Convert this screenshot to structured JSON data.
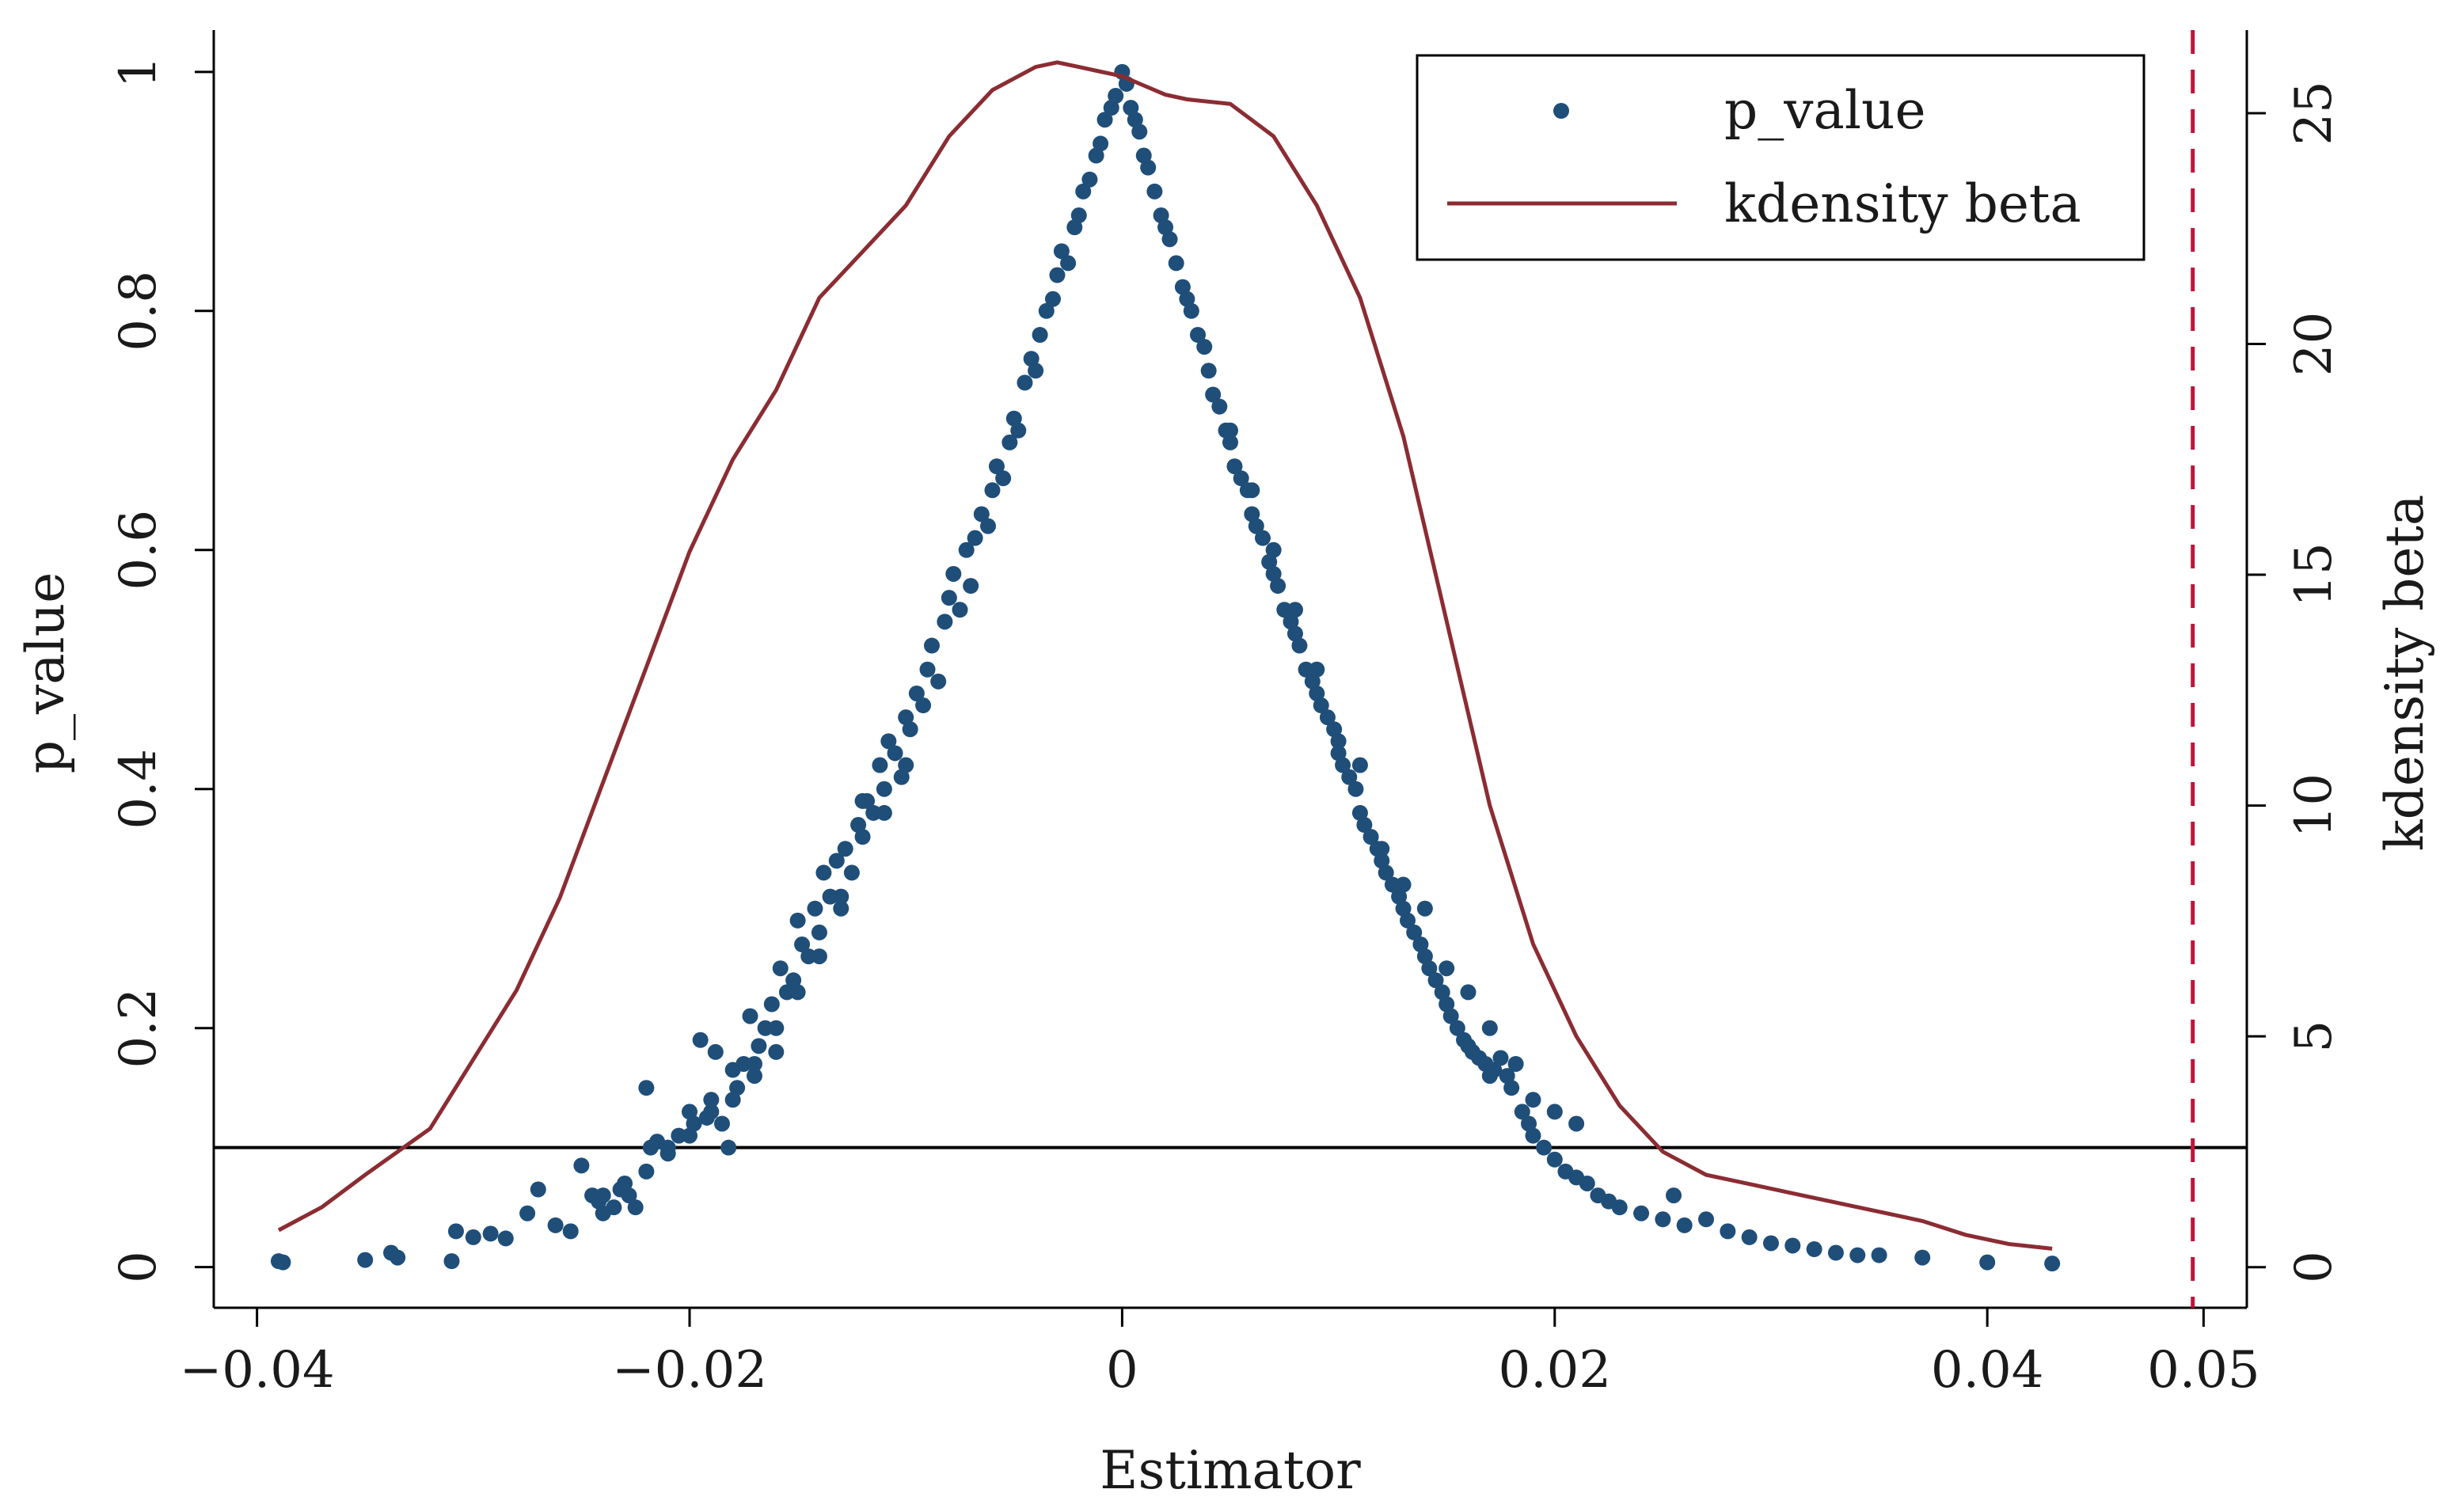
{
  "chart_data": {
    "type": "scatter",
    "xlabel": "Estimator",
    "ylabel": "p_value",
    "y2label": "kdensity beta",
    "xlim": [
      -0.042,
      0.052
    ],
    "ylim": [
      -0.034,
      1.035
    ],
    "y2lim": [
      -0.88,
      26.8
    ],
    "x_ticks": [
      -0.04,
      -0.02,
      0,
      0.02,
      0.04,
      0.05
    ],
    "x_tick_labels": [
      "−0.04",
      "−0.02",
      "0",
      "0.02",
      "0.04",
      "0.05"
    ],
    "y_ticks": [
      0,
      0.2,
      0.4,
      0.6,
      0.8,
      1
    ],
    "y_tick_labels": [
      "0",
      "0.2",
      "0.4",
      "0.6",
      "0.8",
      "1"
    ],
    "y2_ticks": [
      0,
      5,
      10,
      15,
      20,
      25
    ],
    "y2_tick_labels": [
      "0",
      "5",
      "10",
      "15",
      "20",
      "25"
    ],
    "grid": false,
    "legend_position": "top-right",
    "legend": [
      {
        "label": "p_value",
        "marker": "dot"
      },
      {
        "label": "kdensity beta",
        "marker": "line"
      }
    ],
    "colors": {
      "scatter": "#1f4e79",
      "kdensity": "#8b2c33",
      "vline": "#c0143c",
      "hline": "#000000"
    },
    "hline": {
      "y": 0.1
    },
    "vline": {
      "x": 0.0495,
      "style": "dashed"
    },
    "series": [
      {
        "name": "p_value",
        "type": "scatter",
        "points": [
          [
            -0.039,
            0.005
          ],
          [
            -0.0388,
            0.004
          ],
          [
            -0.035,
            0.006
          ],
          [
            -0.0338,
            0.012
          ],
          [
            -0.0335,
            0.008
          ],
          [
            -0.031,
            0.005
          ],
          [
            -0.0308,
            0.03
          ],
          [
            -0.03,
            0.025
          ],
          [
            -0.0292,
            0.028
          ],
          [
            -0.0285,
            0.024
          ],
          [
            -0.0275,
            0.045
          ],
          [
            -0.027,
            0.065
          ],
          [
            -0.0262,
            0.035
          ],
          [
            -0.0255,
            0.03
          ],
          [
            -0.025,
            0.085
          ],
          [
            -0.0245,
            0.06
          ],
          [
            -0.0242,
            0.055
          ],
          [
            -0.024,
            0.045
          ],
          [
            -0.0235,
            0.05
          ],
          [
            -0.0232,
            0.065
          ],
          [
            -0.0228,
            0.06
          ],
          [
            -0.0225,
            0.05
          ],
          [
            -0.022,
            0.15
          ],
          [
            -0.0218,
            0.1
          ],
          [
            -0.0215,
            0.105
          ],
          [
            -0.021,
            0.095
          ],
          [
            -0.0205,
            0.11
          ],
          [
            -0.02,
            0.13
          ],
          [
            -0.0198,
            0.12
          ],
          [
            -0.0195,
            0.19
          ],
          [
            -0.0192,
            0.125
          ],
          [
            -0.019,
            0.14
          ],
          [
            -0.0188,
            0.18
          ],
          [
            -0.0185,
            0.12
          ],
          [
            -0.0182,
            0.1
          ],
          [
            -0.018,
            0.165
          ],
          [
            -0.0178,
            0.15
          ],
          [
            -0.0175,
            0.17
          ],
          [
            -0.0172,
            0.21
          ],
          [
            -0.017,
            0.16
          ],
          [
            -0.0168,
            0.185
          ],
          [
            -0.0165,
            0.2
          ],
          [
            -0.0162,
            0.22
          ],
          [
            -0.016,
            0.18
          ],
          [
            -0.0158,
            0.25
          ],
          [
            -0.0155,
            0.23
          ],
          [
            -0.0152,
            0.24
          ],
          [
            -0.015,
            0.29
          ],
          [
            -0.0148,
            0.27
          ],
          [
            -0.0145,
            0.26
          ],
          [
            -0.0142,
            0.3
          ],
          [
            -0.014,
            0.28
          ],
          [
            -0.0138,
            0.33
          ],
          [
            -0.0135,
            0.31
          ],
          [
            -0.0132,
            0.34
          ],
          [
            -0.013,
            0.3
          ],
          [
            -0.0128,
            0.35
          ],
          [
            -0.0125,
            0.33
          ],
          [
            -0.0122,
            0.37
          ],
          [
            -0.012,
            0.36
          ],
          [
            -0.0118,
            0.39
          ],
          [
            -0.0115,
            0.38
          ],
          [
            -0.0112,
            0.42
          ],
          [
            -0.011,
            0.4
          ],
          [
            -0.0108,
            0.44
          ],
          [
            -0.0105,
            0.43
          ],
          [
            -0.0102,
            0.41
          ],
          [
            -0.01,
            0.46
          ],
          [
            -0.0098,
            0.45
          ],
          [
            -0.0095,
            0.48
          ],
          [
            -0.0092,
            0.47
          ],
          [
            -0.009,
            0.5
          ],
          [
            -0.0088,
            0.52
          ],
          [
            -0.0085,
            0.49
          ],
          [
            -0.0082,
            0.54
          ],
          [
            -0.008,
            0.56
          ],
          [
            -0.0078,
            0.58
          ],
          [
            -0.0075,
            0.55
          ],
          [
            -0.0072,
            0.6
          ],
          [
            -0.007,
            0.57
          ],
          [
            -0.0068,
            0.61
          ],
          [
            -0.0065,
            0.63
          ],
          [
            -0.0062,
            0.62
          ],
          [
            -0.006,
            0.65
          ],
          [
            -0.0058,
            0.67
          ],
          [
            -0.0055,
            0.66
          ],
          [
            -0.0052,
            0.69
          ],
          [
            -0.005,
            0.71
          ],
          [
            -0.0048,
            0.7
          ],
          [
            -0.0045,
            0.74
          ],
          [
            -0.0042,
            0.76
          ],
          [
            -0.004,
            0.75
          ],
          [
            -0.0038,
            0.78
          ],
          [
            -0.0035,
            0.8
          ],
          [
            -0.0032,
            0.81
          ],
          [
            -0.003,
            0.83
          ],
          [
            -0.0028,
            0.85
          ],
          [
            -0.0025,
            0.84
          ],
          [
            -0.0022,
            0.87
          ],
          [
            -0.002,
            0.88
          ],
          [
            -0.0018,
            0.9
          ],
          [
            -0.0015,
            0.91
          ],
          [
            -0.0012,
            0.93
          ],
          [
            -0.001,
            0.94
          ],
          [
            -0.0008,
            0.96
          ],
          [
            -0.0005,
            0.97
          ],
          [
            -0.0003,
            0.98
          ],
          [
            0.0,
            1.0
          ],
          [
            0.0002,
            0.99
          ],
          [
            0.0004,
            0.97
          ],
          [
            0.0006,
            0.96
          ],
          [
            0.0008,
            0.95
          ],
          [
            0.001,
            0.93
          ],
          [
            0.0012,
            0.92
          ],
          [
            0.0015,
            0.9
          ],
          [
            0.0018,
            0.88
          ],
          [
            0.002,
            0.87
          ],
          [
            0.0022,
            0.86
          ],
          [
            0.0025,
            0.84
          ],
          [
            0.0028,
            0.82
          ],
          [
            0.003,
            0.81
          ],
          [
            0.0032,
            0.8
          ],
          [
            0.0035,
            0.78
          ],
          [
            0.0038,
            0.77
          ],
          [
            0.004,
            0.75
          ],
          [
            0.0042,
            0.73
          ],
          [
            0.0045,
            0.72
          ],
          [
            0.0048,
            0.7
          ],
          [
            0.005,
            0.69
          ],
          [
            0.0052,
            0.67
          ],
          [
            0.0055,
            0.66
          ],
          [
            0.0058,
            0.65
          ],
          [
            0.006,
            0.63
          ],
          [
            0.0062,
            0.62
          ],
          [
            0.0065,
            0.61
          ],
          [
            0.0068,
            0.59
          ],
          [
            0.007,
            0.58
          ],
          [
            0.0072,
            0.57
          ],
          [
            0.0075,
            0.55
          ],
          [
            0.0078,
            0.54
          ],
          [
            0.008,
            0.53
          ],
          [
            0.0082,
            0.52
          ],
          [
            0.0085,
            0.5
          ],
          [
            0.0088,
            0.49
          ],
          [
            0.009,
            0.48
          ],
          [
            0.0092,
            0.47
          ],
          [
            0.0095,
            0.46
          ],
          [
            0.0098,
            0.45
          ],
          [
            0.01,
            0.43
          ],
          [
            0.0102,
            0.42
          ],
          [
            0.0105,
            0.41
          ],
          [
            0.0108,
            0.4
          ],
          [
            0.011,
            0.38
          ],
          [
            0.0112,
            0.37
          ],
          [
            0.0115,
            0.36
          ],
          [
            0.0118,
            0.35
          ],
          [
            0.012,
            0.34
          ],
          [
            0.0122,
            0.33
          ],
          [
            0.0125,
            0.32
          ],
          [
            0.0128,
            0.31
          ],
          [
            0.013,
            0.3
          ],
          [
            0.0132,
            0.29
          ],
          [
            0.0135,
            0.28
          ],
          [
            0.0138,
            0.27
          ],
          [
            0.014,
            0.26
          ],
          [
            0.0142,
            0.25
          ],
          [
            0.0145,
            0.24
          ],
          [
            0.0148,
            0.23
          ],
          [
            0.015,
            0.22
          ],
          [
            0.0152,
            0.21
          ],
          [
            0.0155,
            0.2
          ],
          [
            0.0158,
            0.19
          ],
          [
            0.016,
            0.185
          ],
          [
            0.0162,
            0.18
          ],
          [
            0.0165,
            0.175
          ],
          [
            0.0168,
            0.17
          ],
          [
            0.017,
            0.16
          ],
          [
            0.0172,
            0.165
          ],
          [
            0.0175,
            0.175
          ],
          [
            0.0178,
            0.16
          ],
          [
            0.018,
            0.15
          ],
          [
            0.0182,
            0.17
          ],
          [
            0.0185,
            0.13
          ],
          [
            0.0188,
            0.12
          ],
          [
            0.019,
            0.11
          ],
          [
            0.0195,
            0.1
          ],
          [
            0.02,
            0.09
          ],
          [
            0.0205,
            0.08
          ],
          [
            0.021,
            0.075
          ],
          [
            0.0215,
            0.07
          ],
          [
            0.022,
            0.06
          ],
          [
            0.0225,
            0.055
          ],
          [
            0.023,
            0.05
          ],
          [
            0.024,
            0.045
          ],
          [
            0.025,
            0.04
          ],
          [
            0.0255,
            0.06
          ],
          [
            0.026,
            0.035
          ],
          [
            0.027,
            0.04
          ],
          [
            0.028,
            0.03
          ],
          [
            0.029,
            0.025
          ],
          [
            0.03,
            0.02
          ],
          [
            0.031,
            0.018
          ],
          [
            0.032,
            0.015
          ],
          [
            0.033,
            0.012
          ],
          [
            0.034,
            0.01
          ],
          [
            0.035,
            0.01
          ],
          [
            0.037,
            0.008
          ],
          [
            0.04,
            0.004
          ],
          [
            0.043,
            0.003
          ],
          [
            0.021,
            0.12
          ],
          [
            0.02,
            0.13
          ],
          [
            0.019,
            0.14
          ],
          [
            0.017,
            0.2
          ],
          [
            0.016,
            0.23
          ],
          [
            0.015,
            0.25
          ],
          [
            0.014,
            0.3
          ],
          [
            0.013,
            0.32
          ],
          [
            0.012,
            0.35
          ],
          [
            0.011,
            0.42
          ],
          [
            0.01,
            0.44
          ],
          [
            0.009,
            0.5
          ],
          [
            0.008,
            0.55
          ],
          [
            0.007,
            0.6
          ],
          [
            0.006,
            0.65
          ],
          [
            0.005,
            0.7
          ],
          [
            -0.01,
            0.42
          ],
          [
            -0.011,
            0.38
          ],
          [
            -0.012,
            0.39
          ],
          [
            -0.013,
            0.31
          ],
          [
            -0.014,
            0.26
          ],
          [
            -0.015,
            0.23
          ],
          [
            -0.016,
            0.2
          ],
          [
            -0.017,
            0.17
          ],
          [
            -0.018,
            0.14
          ],
          [
            -0.019,
            0.13
          ],
          [
            -0.02,
            0.11
          ],
          [
            -0.021,
            0.1
          ],
          [
            -0.022,
            0.08
          ],
          [
            -0.023,
            0.07
          ],
          [
            -0.024,
            0.06
          ]
        ]
      },
      {
        "name": "kdensity beta",
        "type": "line",
        "axis": "right",
        "x": [
          -0.039,
          -0.037,
          -0.035,
          -0.032,
          -0.03,
          -0.028,
          -0.026,
          -0.024,
          -0.022,
          -0.02,
          -0.018,
          -0.016,
          -0.014,
          -0.012,
          -0.01,
          -0.008,
          -0.006,
          -0.004,
          -0.003,
          -0.002,
          -0.001,
          0.0,
          0.001,
          0.002,
          0.003,
          0.005,
          0.007,
          0.009,
          0.011,
          0.013,
          0.015,
          0.017,
          0.019,
          0.021,
          0.023,
          0.025,
          0.027,
          0.029,
          0.031,
          0.033,
          0.035,
          0.037,
          0.039,
          0.041,
          0.043
        ],
        "y": [
          0.8,
          1.3,
          2.0,
          3.0,
          4.5,
          6.0,
          8.0,
          10.5,
          13.0,
          15.5,
          17.5,
          19.0,
          21.0,
          22.0,
          23.0,
          24.5,
          25.5,
          26.0,
          26.1,
          26.0,
          25.9,
          25.8,
          25.6,
          25.4,
          25.3,
          25.2,
          24.5,
          23.0,
          21.0,
          18.0,
          14.0,
          10.0,
          7.0,
          5.0,
          3.5,
          2.5,
          2.0,
          1.8,
          1.6,
          1.4,
          1.2,
          1.0,
          0.7,
          0.5,
          0.4
        ]
      }
    ]
  }
}
